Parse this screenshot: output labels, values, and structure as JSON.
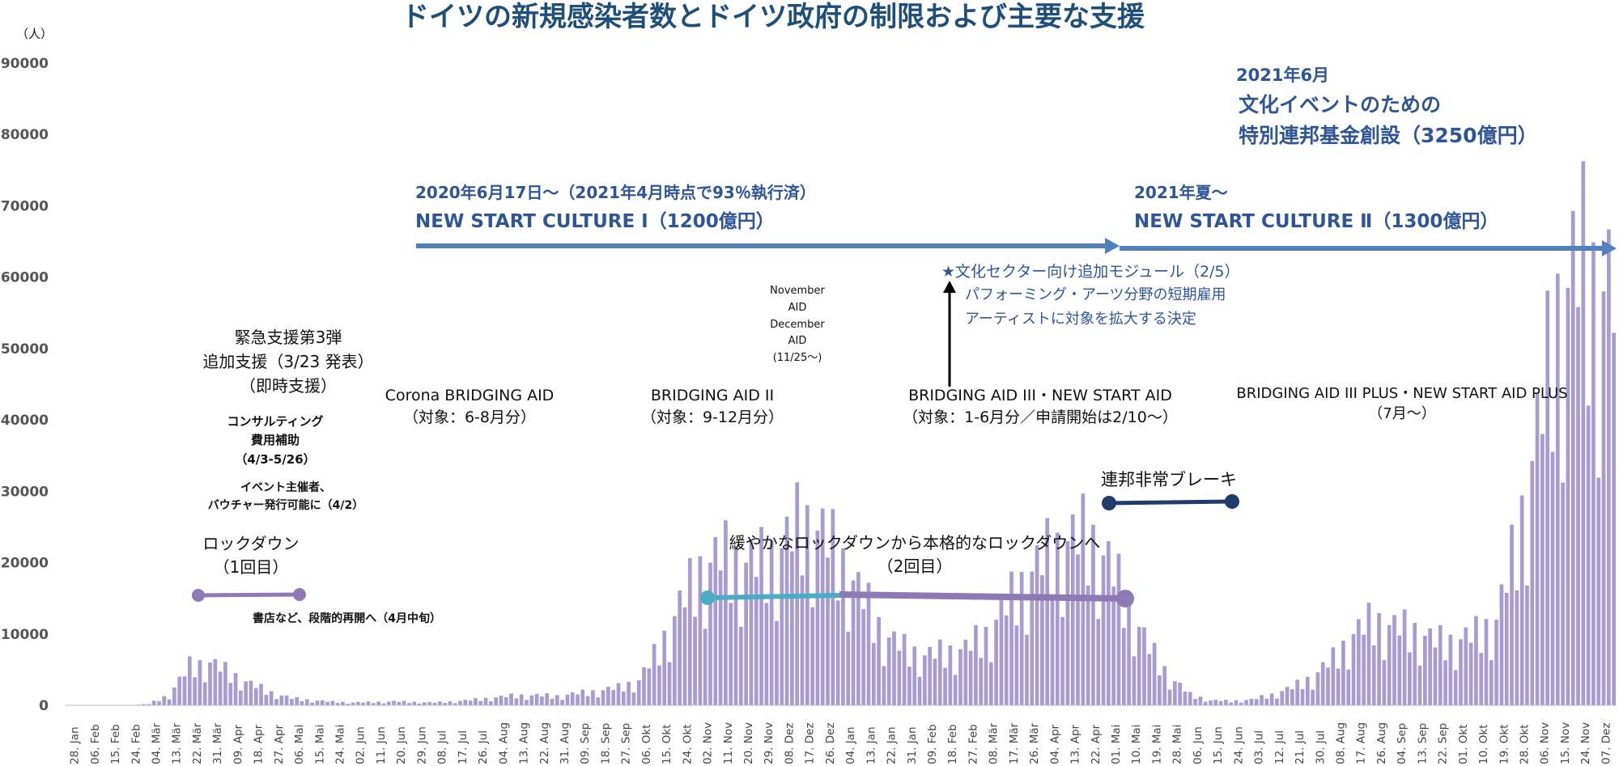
{
  "chart_data": {
    "type": "bar",
    "title": "ドイツの新規感染者数とドイツ政府の制限および主要な支援",
    "y_unit": "（人）",
    "ylim": [
      0,
      90000
    ],
    "y_ticks": [
      0,
      10000,
      20000,
      30000,
      40000,
      50000,
      60000,
      70000,
      80000,
      90000
    ],
    "bar_color": "#a89bd0",
    "x_tick_labels": [
      "28. Jan",
      "06. Feb",
      "15. Feb",
      "24. Feb",
      "04. Mär",
      "13. Mär",
      "22. Mär",
      "31. Mär",
      "09. Apr",
      "18. Apr",
      "27. Apr",
      "06. Mai",
      "15. Mai",
      "24. Mai",
      "02. Jun",
      "11. Jun",
      "20. Jun",
      "29. Jun",
      "08. Jul",
      "17. Jul",
      "26. Jul",
      "04. Aug",
      "13. Aug",
      "22. Aug",
      "31. Aug",
      "09. Sep",
      "18. Sep",
      "27. Sep",
      "06. Okt",
      "15. Okt",
      "24. Okt",
      "02. Nov",
      "11. Nov",
      "20. Nov",
      "29. Nov",
      "08. Dez",
      "17. Dez",
      "26. Dez",
      "04. Jan",
      "13. Jan",
      "22. Jan",
      "31. Jan",
      "09. Feb",
      "18. Feb",
      "27. Feb",
      "08. Mär",
      "17. Mär",
      "26. Mär",
      "04. Apr",
      "13. Apr",
      "22. Apr",
      "01. Mai",
      "10. Mai",
      "19. Mai",
      "28. Mai",
      "06. Jun",
      "15. Jun",
      "24. Jun",
      "03. Jul",
      "12. Jul",
      "21. Jul",
      "30. Jul",
      "08. Aug",
      "17. Aug",
      "26. Aug",
      "04. Sep",
      "13. Sep",
      "22. Sep",
      "01. Okt",
      "10. Okt",
      "19. Okt",
      "28. Okt",
      "06. Nov",
      "15. Nov",
      "24. Nov",
      "07. Dez"
    ],
    "series": [
      {
        "values_per_tick": [
          0,
          0,
          0,
          0,
          200,
          1500,
          5500,
          6000,
          4500,
          3000,
          1800,
          1000,
          700,
          500,
          400,
          450,
          550,
          450,
          400,
          550,
          800,
          1100,
          1400,
          1400,
          1300,
          1700,
          2000,
          2500,
          3500,
          8000,
          14000,
          19000,
          21000,
          20000,
          20000,
          22000,
          26000,
          24000,
          20000,
          15000,
          10000,
          8000,
          7000,
          7500,
          8000,
          10000,
          14000,
          18000,
          21000,
          23000,
          24000,
          20000,
          14000,
          8000,
          4000,
          1500,
          700,
          600,
          800,
          1500,
          2500,
          4000,
          6500,
          10000,
          12000,
          11000,
          10500,
          9000,
          9000,
          10000,
          12000,
          23000,
          38000,
          55000,
          62000,
          58000
        ]
      }
    ]
  },
  "annotations": {
    "phase1_header": "2020年6月17日～（2021年4月時点で93％執行済）",
    "phase1_title": "NEW START CULTURE Ⅰ（1200億円）",
    "phase2_header": "2021年夏～",
    "phase2_title": "NEW START CULTURE Ⅱ（1300億円）",
    "fund_line1": "2021年6月",
    "fund_line2": "文化イベントのための",
    "fund_line3": "特別連邦基金創設（3250億円）",
    "module_line1": "★文化セクター向け追加モジュール（2/5）",
    "module_line2": "パフォーミング・アーツ分野の短期雇用",
    "module_line3": "アーティストに対象を拡大する決定",
    "nov_aid_1": "November",
    "nov_aid_2": "AID",
    "nov_aid_3": "December",
    "nov_aid_4": "AID",
    "nov_aid_5": "(11/25～)",
    "emergency_1": "緊急支援第3弾",
    "emergency_2": "追加支援（3/23 発表）",
    "emergency_3": "（即時支援）",
    "consult_1": "コンサルティング",
    "consult_2": "費用補助",
    "consult_3": "（4/3-5/26）",
    "event_1": "イベント主催者、",
    "event_2": "バウチャー発行可能に（4/2）",
    "lockdown1_1": "ロックダウン",
    "lockdown1_2": "（1回目）",
    "bookstore": "書店など、段階的再開へ（4月中旬）",
    "bridging1_1": "Corona BRIDGING AID",
    "bridging1_2": "（対象：6-8月分）",
    "bridging2_1": "BRIDGING AID II",
    "bridging2_2": "（対象：9-12月分）",
    "bridging3_1": "BRIDGING AID III・NEW START AID",
    "bridging3_2": "（対象：1-6月分／申請開始は2/10～）",
    "bridging3plus_1": "BRIDGING AID III PLUS・NEW START AID PLUS",
    "bridging3plus_2": "（7月～）",
    "lockdown2_1": "緩やかなロックダウンから本格的なロックダウンへ",
    "lockdown2_2": "（2回目）",
    "emergency_brake": "連邦非常ブレーキ"
  },
  "colors": {
    "title": "#1F4E79",
    "arrow": "#4F81BD",
    "lockdown_purple": "#8E79B5",
    "light_lockdown": "#4BACC6",
    "brake_navy": "#1F3A6B"
  }
}
